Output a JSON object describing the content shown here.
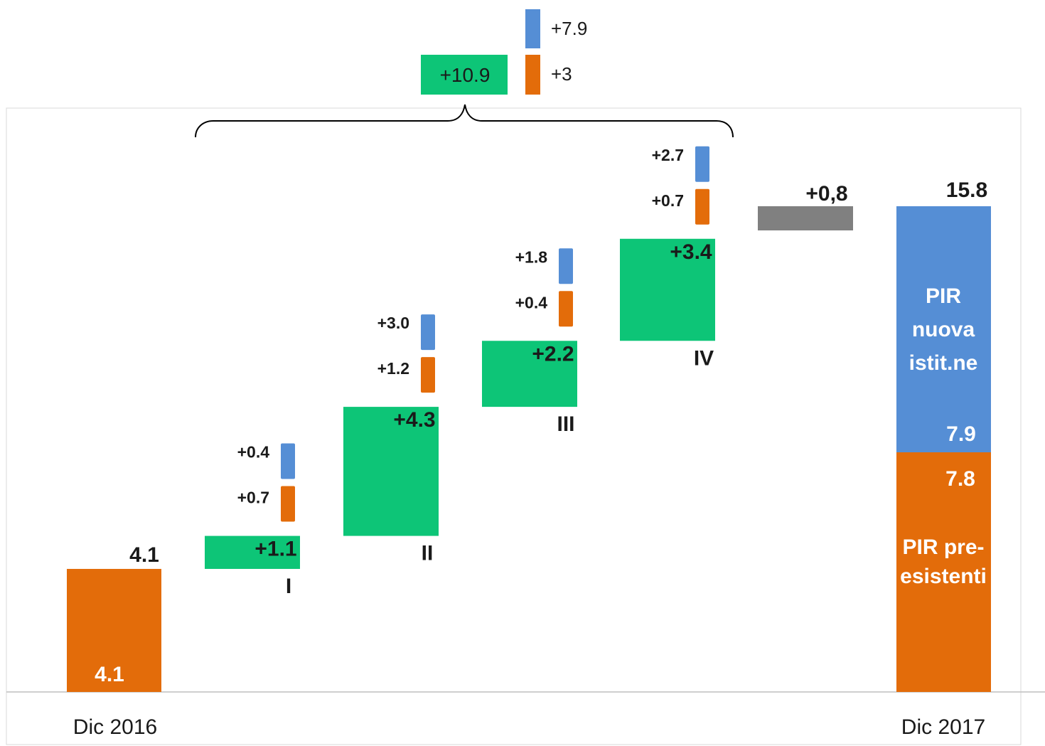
{
  "colors": {
    "orange": "#E36C0A",
    "blue": "#558ED5",
    "green": "#0DC577",
    "gray": "#808080",
    "frame": "#D9D9D9",
    "axis": "#BFBFBF",
    "text": "#1A1A1A",
    "label_on_bar": "#FFFFFF"
  },
  "summary_legend": {
    "total_label": "+10.9",
    "new_label": "+7.9",
    "existing_label": "+3"
  },
  "chart_data": {
    "type": "waterfall",
    "title": "",
    "xlabel": "",
    "ylabel": "",
    "ylim": [
      0,
      17.3
    ],
    "grid": false,
    "start": {
      "category": "Dic 2016",
      "value": 4.1,
      "value_label_top": "4.1",
      "value_label_inside": "4.1",
      "color": "orange"
    },
    "quarters": [
      {
        "label": "I",
        "base": 4.1,
        "increase": 1.1,
        "increase_label": "+1.1",
        "existing": 0.7,
        "existing_label": "+0.7",
        "new": 0.4,
        "new_label": "+0.4"
      },
      {
        "label": "II",
        "base": 5.2,
        "increase": 4.3,
        "increase_label": "+4.3",
        "existing": 1.2,
        "existing_label": "+1.2",
        "new": 3.0,
        "new_label": "+3.0"
      },
      {
        "label": "III",
        "base": 9.5,
        "increase": 2.2,
        "increase_label": "+2.2",
        "existing": 0.4,
        "existing_label": "+0.4",
        "new": 1.8,
        "new_label": "+1.8"
      },
      {
        "label": "IV",
        "base": 11.7,
        "increase": 3.4,
        "increase_label": "+3.4",
        "existing": 0.7,
        "existing_label": "+0.7",
        "new": 2.7,
        "new_label": "+2.7"
      }
    ],
    "other": {
      "base": 15.1,
      "increase": 0.8,
      "label": "+0,8",
      "color": "gray"
    },
    "end": {
      "category": "Dic 2017",
      "total": 15.8,
      "total_label": "15.8",
      "segments": [
        {
          "name": "PIR pre-esistenti",
          "value": 7.8,
          "value_label": "7.8",
          "name_lines": [
            "PIR pre-",
            "esistenti"
          ],
          "color": "orange"
        },
        {
          "name": "PIR nuova istit.ne",
          "value": 7.9,
          "value_label": "7.9",
          "name_lines": [
            "PIR",
            "nuova",
            "istit.ne"
          ],
          "color": "blue"
        }
      ]
    },
    "brace": {
      "spans": "I–IV",
      "label": "+10.9"
    }
  }
}
